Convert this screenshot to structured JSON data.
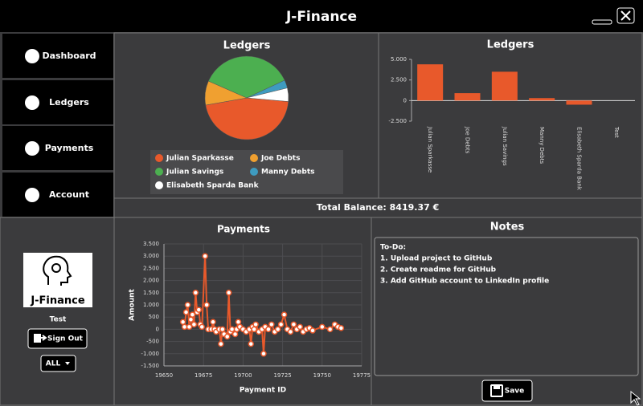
{
  "header": {
    "title": "J-Finance"
  },
  "nav": [
    "Dashboard",
    "Ledgers",
    "Payments",
    "Account"
  ],
  "user": {
    "logo": "J-Finance",
    "name": "Test",
    "sign_out": "Sign Out",
    "filter": "ALL"
  },
  "total_balance": "Total Balance: 8419.37 €",
  "notes": {
    "title": "Notes",
    "lines": [
      "To-Do:",
      "1. Upload project to GitHub",
      "2. Create readme for GitHub",
      "3. Add GitHub account to LinkedIn profile"
    ],
    "save": "Save"
  },
  "chart_data": [
    {
      "type": "pie",
      "title": "Ledgers",
      "categories": [
        "Julian Sparkasse",
        "Joe Debts",
        "Julian Savings",
        "Manny Debts",
        "Elisabeth Sparda Bank"
      ],
      "values": [
        4400,
        900,
        3500,
        300,
        500
      ],
      "colors": [
        "#e8592b",
        "#f0a030",
        "#4caf50",
        "#3e9bc0",
        "#ffffff"
      ]
    },
    {
      "type": "bar",
      "title": "Ledgers",
      "categories": [
        "Julian Sparkasse",
        "Joe Debts",
        "Julian Savings",
        "Manny Debts",
        "Elisabeth Sparda Bank",
        "Test"
      ],
      "values": [
        4400,
        900,
        3500,
        300,
        -500,
        0
      ],
      "color": "#e8592b",
      "ylim": [
        -2500,
        5000
      ],
      "yticks": [
        {
          "value": 5000,
          "label": "5.000"
        },
        {
          "value": 2500,
          "label": "2.500"
        },
        0,
        {
          "value": -2500,
          "label": "-2.500"
        }
      ]
    },
    {
      "type": "line",
      "title": "Payments",
      "xlabel": "Payment ID",
      "ylabel": "Amount",
      "color": "#e8592b",
      "grid": true,
      "xlim": [
        19650,
        19775
      ],
      "xticks": [
        19650,
        19675,
        19700,
        19725,
        19750,
        19775
      ],
      "ylim": [
        -1500,
        3500
      ],
      "yticks": [
        {
          "value": 3500,
          "label": "3.500"
        },
        {
          "value": 3000,
          "label": "3.000"
        },
        {
          "value": 2500,
          "label": "2.500"
        },
        {
          "value": 2000,
          "label": "2.000"
        },
        {
          "value": 1500,
          "label": "1.500"
        },
        {
          "value": 1000,
          "label": "1.000"
        },
        500,
        0,
        -500,
        {
          "value": -1000,
          "label": "-1.000"
        },
        {
          "value": -1500,
          "label": "-1.500"
        }
      ],
      "x": [
        19662,
        19663,
        19664,
        19665,
        19666,
        19667,
        19668,
        19669,
        19670,
        19671,
        19672,
        19673,
        19674,
        19676,
        19677,
        19678,
        19680,
        19681,
        19682,
        19683,
        19685,
        19686,
        19687,
        19688,
        19690,
        19691,
        19692,
        19693,
        19695,
        19696,
        19697,
        19698,
        19700,
        19702,
        19704,
        19705,
        19706,
        19707,
        19708,
        19710,
        19712,
        19713,
        19714,
        19716,
        19718,
        19720,
        19722,
        19724,
        19726,
        19728,
        19730,
        19732,
        19734,
        19736,
        19738,
        19740,
        19742,
        19744,
        19750,
        19755,
        19758,
        19760,
        19762
      ],
      "values": [
        300,
        100,
        700,
        1000,
        100,
        400,
        600,
        200,
        1500,
        700,
        800,
        200,
        100,
        3000,
        1000,
        0,
        0,
        300,
        0,
        -100,
        0,
        -600,
        0,
        -200,
        -300,
        1500,
        -100,
        0,
        -200,
        0,
        300,
        100,
        0,
        -100,
        0,
        -600,
        100,
        0,
        200,
        -100,
        0,
        -1000,
        100,
        0,
        200,
        -100,
        0,
        200,
        600,
        0,
        -100,
        200,
        0,
        100,
        -100,
        0,
        50,
        -50,
        100,
        0,
        200,
        100,
        50
      ]
    }
  ]
}
